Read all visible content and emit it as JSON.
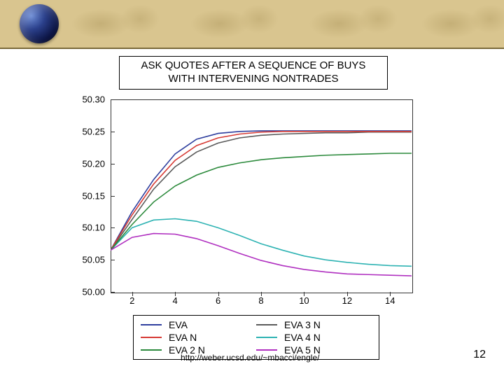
{
  "header": {
    "band_color": "#d9c58f",
    "underline_color": "#7a6a3a"
  },
  "title": {
    "line1": "ASK QUOTES AFTER A SEQUENCE OF BUYS",
    "line2": "WITH INTERVENING NONTRADES"
  },
  "chart": {
    "type": "line",
    "xlim": [
      1,
      15
    ],
    "ylim": [
      50.0,
      50.3
    ],
    "x_ticks": [
      2,
      4,
      6,
      8,
      10,
      12,
      14
    ],
    "y_ticks": [
      "50.00",
      "50.05",
      "50.10",
      "50.15",
      "50.20",
      "50.25",
      "50.30"
    ],
    "axis_color": "#333333",
    "background": "#ffffff",
    "series": [
      {
        "name": "EVA",
        "label": "EVA",
        "color": "#2e3e9e",
        "x": [
          1,
          2,
          3,
          4,
          5,
          6,
          7,
          8,
          9,
          10,
          11,
          12,
          13,
          14,
          15
        ],
        "y": [
          50.065,
          50.125,
          50.175,
          50.215,
          50.238,
          50.247,
          50.25,
          50.251,
          50.251,
          50.251,
          50.251,
          50.251,
          50.251,
          50.251,
          50.251
        ]
      },
      {
        "name": "EVA3N",
        "label": "EVA 3 N",
        "color": "#5a5a5a",
        "x": [
          1,
          2,
          3,
          4,
          5,
          6,
          7,
          8,
          9,
          10,
          11,
          12,
          13,
          14,
          15
        ],
        "y": [
          50.065,
          50.113,
          50.16,
          50.195,
          50.218,
          50.232,
          50.24,
          50.244,
          50.246,
          50.247,
          50.248,
          50.248,
          50.249,
          50.249,
          50.249
        ]
      },
      {
        "name": "EVAN",
        "label": "EVA N",
        "color": "#d63a34",
        "x": [
          1,
          2,
          3,
          4,
          5,
          6,
          7,
          8,
          9,
          10,
          11,
          12,
          13,
          14,
          15
        ],
        "y": [
          50.065,
          50.12,
          50.168,
          50.205,
          50.228,
          50.24,
          50.246,
          50.249,
          50.25,
          50.25,
          50.25,
          50.25,
          50.25,
          50.25,
          50.25
        ]
      },
      {
        "name": "EVA4N",
        "label": "EVA 4 N",
        "color": "#2eb3b3",
        "x": [
          1,
          2,
          3,
          4,
          5,
          6,
          7,
          8,
          9,
          10,
          11,
          12,
          13,
          14,
          15
        ],
        "y": [
          50.065,
          50.1,
          50.112,
          50.114,
          50.11,
          50.1,
          50.088,
          50.075,
          50.065,
          50.056,
          50.05,
          50.046,
          50.043,
          50.041,
          50.04
        ]
      },
      {
        "name": "EVA2N",
        "label": "EVA 2 N",
        "color": "#2c8a3c",
        "x": [
          1,
          2,
          3,
          4,
          5,
          6,
          7,
          8,
          9,
          10,
          11,
          12,
          13,
          14,
          15
        ],
        "y": [
          50.065,
          50.105,
          50.14,
          50.165,
          50.182,
          50.194,
          50.201,
          50.206,
          50.209,
          50.211,
          50.213,
          50.214,
          50.215,
          50.216,
          50.216
        ]
      },
      {
        "name": "EVA5N",
        "label": "EVA 5 N",
        "color": "#b030c0",
        "x": [
          1,
          2,
          3,
          4,
          5,
          6,
          7,
          8,
          9,
          10,
          11,
          12,
          13,
          14,
          15
        ],
        "y": [
          50.065,
          50.085,
          50.091,
          50.09,
          50.083,
          50.072,
          50.06,
          50.049,
          50.041,
          50.035,
          50.031,
          50.028,
          50.027,
          50.026,
          50.025
        ]
      }
    ],
    "line_width": 1.6
  },
  "legend_order": [
    "EVA",
    "EVA3N",
    "EVAN",
    "EVA4N",
    "EVA2N",
    "EVA5N"
  ],
  "footer": {
    "link_text": "http://weber.ucsd.edu/~mbacci/engle/",
    "page_number": "12"
  }
}
